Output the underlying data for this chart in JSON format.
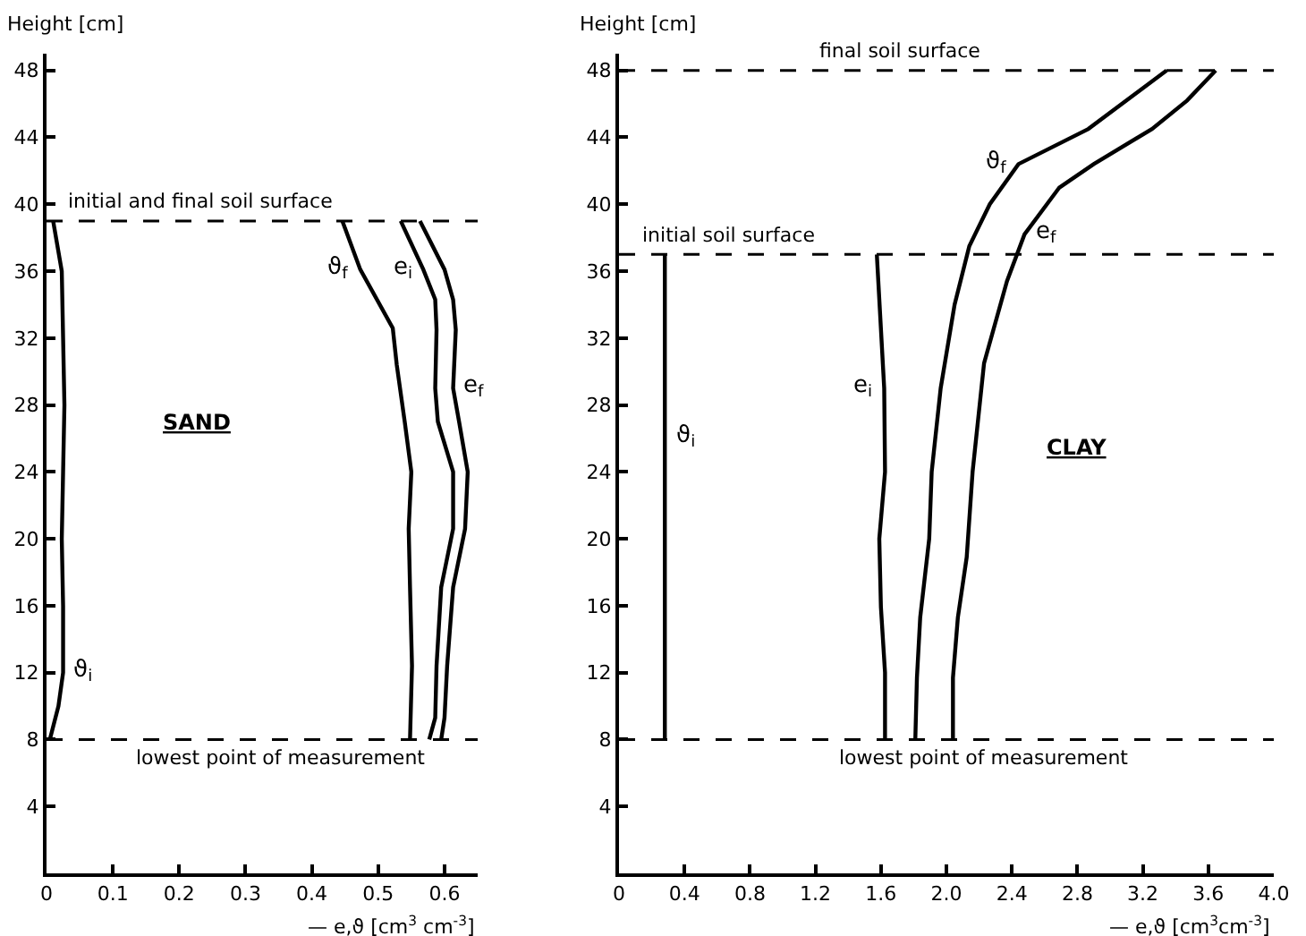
{
  "chart_data": [
    {
      "type": "line",
      "xlabel": "— e,ϑ [cm$^{3}$ cm$^{-3}$]",
      "ylabel": "Height [cm]",
      "xlim": [
        0,
        0.65
      ],
      "ylim": [
        0,
        49
      ],
      "xticks": [
        0,
        0.1,
        0.2,
        0.3,
        0.4,
        0.5,
        0.6
      ],
      "yticks": [
        4,
        8,
        12,
        16,
        20,
        24,
        28,
        32,
        36,
        40,
        44,
        48
      ],
      "grid": false,
      "legend": false,
      "marker": "none",
      "line_style": "solid",
      "series": [
        {
          "name": "ϑ$_{i}$",
          "color": "#000000",
          "x": [
            0.005,
            0.018,
            0.025,
            0.025,
            0.023,
            0.025,
            0.027,
            0.025,
            0.023,
            0.01
          ],
          "values": [
            8,
            10,
            12,
            16,
            20,
            24,
            28,
            32,
            36,
            39
          ]
        },
        {
          "name": "ϑ$_{f}$",
          "color": "#000000",
          "x": [
            0.548,
            0.551,
            0.548,
            0.546,
            0.55,
            0.54,
            0.528,
            0.522,
            0.473,
            0.446
          ],
          "values": [
            8,
            12.4,
            17.1,
            20.6,
            24,
            27,
            30.4,
            32.6,
            36.1,
            39
          ]
        },
        {
          "name": "e$_{i}$",
          "color": "#000000",
          "x": [
            0.577,
            0.586,
            0.588,
            0.595,
            0.613,
            0.613,
            0.59,
            0.586,
            0.588,
            0.586,
            0.568,
            0.534
          ],
          "values": [
            8,
            9.3,
            12.4,
            17.1,
            20.6,
            24,
            27,
            29,
            32.5,
            34.3,
            36.1,
            39
          ]
        },
        {
          "name": "e$_{f}$",
          "color": "#000000",
          "x": [
            0.595,
            0.6,
            0.604,
            0.613,
            0.631,
            0.635,
            0.622,
            0.613,
            0.617,
            0.613,
            0.6,
            0.563
          ],
          "values": [
            8,
            9.3,
            12.4,
            17.1,
            20.6,
            24,
            27,
            29,
            32.5,
            34.3,
            36.1,
            39
          ]
        }
      ],
      "ref_lines": [
        {
          "axis": "y",
          "value": 39,
          "label": "initial and final soil surface",
          "color": "#000000",
          "line_style": "dashed"
        },
        {
          "axis": "y",
          "value": 8,
          "label": "lowest point of measurement",
          "color": "#000000",
          "line_style": "dashed"
        }
      ],
      "annotations": [
        "SAND"
      ]
    },
    {
      "type": "line",
      "xlabel": "— e,ϑ [cm$^{3}$cm$^{-3}$]",
      "ylabel": "Height [cm]",
      "xlim": [
        0,
        4.0
      ],
      "ylim": [
        0,
        49
      ],
      "xticks": [
        0,
        0.4,
        0.8,
        1.2,
        1.6,
        {
          "value": 2,
          "label": "2.0"
        },
        2.4,
        2.8,
        3.2,
        3.6,
        {
          "value": 4,
          "label": "4.0"
        }
      ],
      "yticks": [
        4,
        8,
        12,
        16,
        20,
        24,
        28,
        32,
        36,
        40,
        44,
        48
      ],
      "grid": false,
      "legend": false,
      "marker": "none",
      "line_style": "solid",
      "series": [
        {
          "name": "ϑ$_{i}$",
          "color": "#000000",
          "x": [
            0.28,
            0.28,
            0.28
          ],
          "values": [
            8,
            26,
            37
          ]
        },
        {
          "name": "e$_{i}$",
          "color": "#000000",
          "x": [
            1.625,
            1.625,
            1.6,
            1.59,
            1.625,
            1.62,
            1.575
          ],
          "values": [
            8,
            12,
            15.9,
            20,
            24,
            29,
            37
          ]
        },
        {
          "name": "ϑ$_{f}$",
          "color": "#000000",
          "x": [
            1.81,
            1.82,
            1.84,
            1.895,
            1.91,
            1.965,
            2.05,
            2.14,
            2.265,
            2.44,
            2.867,
            3.345
          ],
          "values": [
            8,
            11.7,
            15.3,
            20,
            24,
            29,
            34,
            37.5,
            40,
            42.4,
            44.5,
            48
          ]
        },
        {
          "name": "e$_{f}$",
          "color": "#000000",
          "x": [
            2.04,
            2.04,
            2.07,
            2.124,
            2.16,
            2.23,
            2.37,
            2.477,
            2.69,
            2.9,
            3.256,
            3.47,
            3.645
          ],
          "values": [
            8,
            11.7,
            15.3,
            18.9,
            24,
            30.5,
            35.4,
            38.2,
            41,
            42.4,
            44.5,
            46.2,
            48
          ]
        }
      ],
      "ref_lines": [
        {
          "axis": "y",
          "value": 48,
          "label": "final soil surface",
          "color": "#000000",
          "line_style": "dashed"
        },
        {
          "axis": "y",
          "value": 37,
          "label": "initial soil surface",
          "color": "#000000",
          "line_style": "dashed"
        },
        {
          "axis": "y",
          "value": 8,
          "label": "lowest point of measurement",
          "color": "#000000",
          "line_style": "dashed"
        }
      ],
      "annotations": [
        "CLAY"
      ]
    }
  ]
}
